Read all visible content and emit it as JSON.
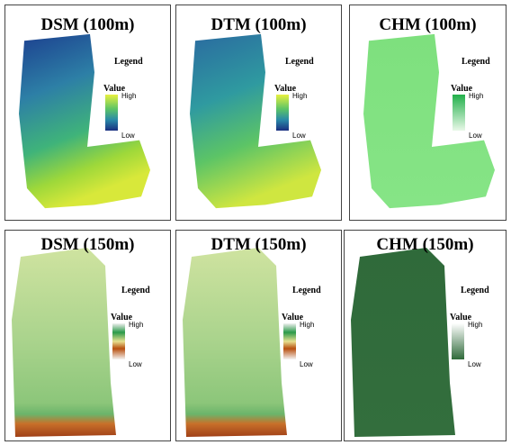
{
  "panels": [
    {
      "title": "DSM (100m)",
      "legend": {
        "title": "Legend",
        "value": "Value",
        "high": "High",
        "low": "Low"
      }
    },
    {
      "title": "DTM (100m)",
      "legend": {
        "title": "Legend",
        "value": "Value",
        "high": "High",
        "low": "Low"
      }
    },
    {
      "title": "CHM (100m)",
      "legend": {
        "title": "Legend",
        "value": "Value",
        "high": "High",
        "low": "Low"
      }
    },
    {
      "title": "DSM (150m)",
      "legend": {
        "title": "Legend",
        "value": "Value",
        "high": "High",
        "low": "Low"
      }
    },
    {
      "title": "DTM (150m)",
      "legend": {
        "title": "Legend",
        "value": "Value",
        "high": "High",
        "low": "Low"
      }
    },
    {
      "title": "CHM (150m)",
      "legend": {
        "title": "Legend",
        "value": "Value",
        "high": "High",
        "low": "Low"
      }
    }
  ]
}
